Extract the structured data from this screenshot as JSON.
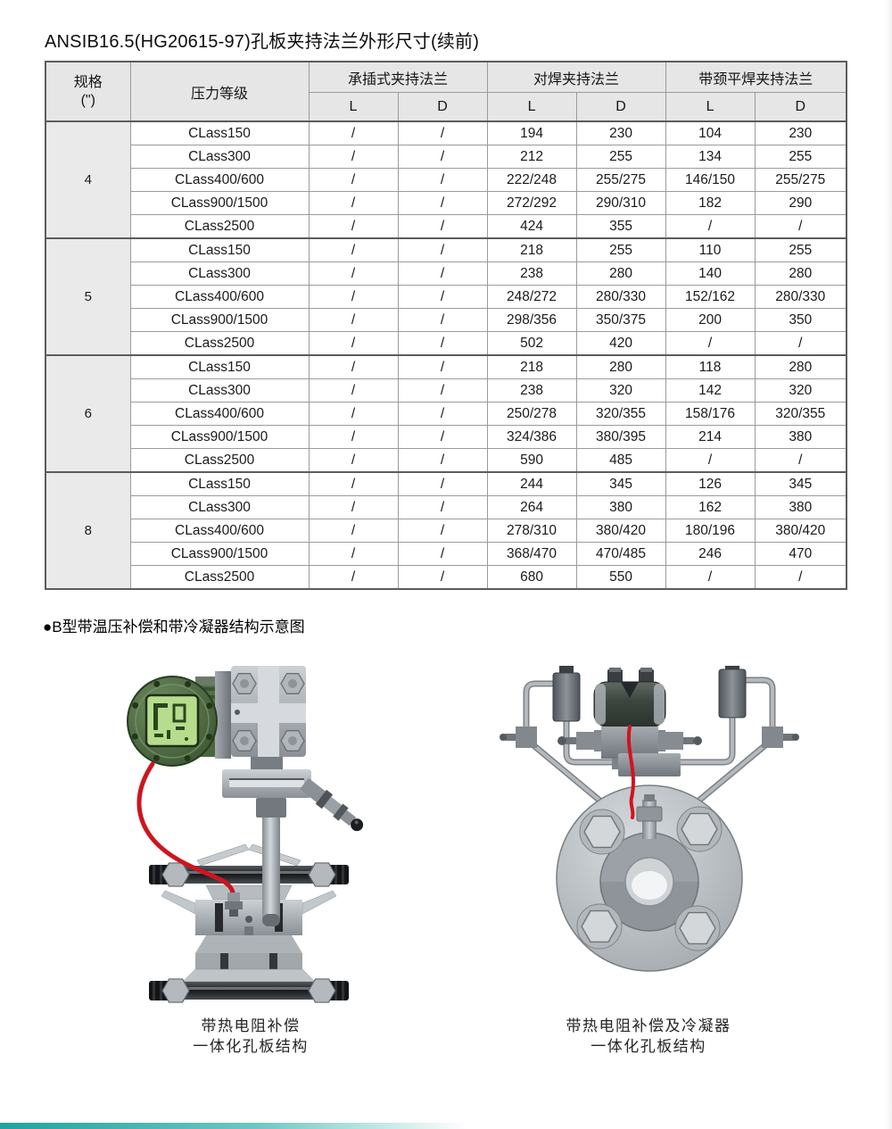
{
  "title": "ANSIB16.5(HG20615-97)孔板夹持法兰外形尺寸(续前)",
  "table": {
    "headers": {
      "spec_line1": "规格",
      "spec_line2": "(\")",
      "pressure_class": "压力等级",
      "socket_weld": "承插式夹持法兰",
      "butt_weld": "对焊夹持法兰",
      "neck_flat_weld": "带颈平焊夹持法兰",
      "dim_l": "L",
      "dim_d": "D"
    },
    "groups": [
      {
        "size": "4",
        "rows": [
          {
            "pressure_class": "CLass150",
            "values": [
              "/",
              "/",
              "194",
              "230",
              "104",
              "230"
            ]
          },
          {
            "pressure_class": "CLass300",
            "values": [
              "/",
              "/",
              "212",
              "255",
              "134",
              "255"
            ]
          },
          {
            "pressure_class": "CLass400/600",
            "values": [
              "/",
              "/",
              "222/248",
              "255/275",
              "146/150",
              "255/275"
            ]
          },
          {
            "pressure_class": "CLass900/1500",
            "values": [
              "/",
              "/",
              "272/292",
              "290/310",
              "182",
              "290"
            ]
          },
          {
            "pressure_class": "CLass2500",
            "values": [
              "/",
              "/",
              "424",
              "355",
              "/",
              "/"
            ]
          }
        ]
      },
      {
        "size": "5",
        "rows": [
          {
            "pressure_class": "CLass150",
            "values": [
              "/",
              "/",
              "218",
              "255",
              "110",
              "255"
            ]
          },
          {
            "pressure_class": "CLass300",
            "values": [
              "/",
              "/",
              "238",
              "280",
              "140",
              "280"
            ]
          },
          {
            "pressure_class": "CLass400/600",
            "values": [
              "/",
              "/",
              "248/272",
              "280/330",
              "152/162",
              "280/330"
            ]
          },
          {
            "pressure_class": "CLass900/1500",
            "values": [
              "/",
              "/",
              "298/356",
              "350/375",
              "200",
              "350"
            ]
          },
          {
            "pressure_class": "CLass2500",
            "values": [
              "/",
              "/",
              "502",
              "420",
              "/",
              "/"
            ]
          }
        ]
      },
      {
        "size": "6",
        "rows": [
          {
            "pressure_class": "CLass150",
            "values": [
              "/",
              "/",
              "218",
              "280",
              "118",
              "280"
            ]
          },
          {
            "pressure_class": "CLass300",
            "values": [
              "/",
              "/",
              "238",
              "320",
              "142",
              "320"
            ]
          },
          {
            "pressure_class": "CLass400/600",
            "values": [
              "/",
              "/",
              "250/278",
              "320/355",
              "158/176",
              "320/355"
            ]
          },
          {
            "pressure_class": "CLass900/1500",
            "values": [
              "/",
              "/",
              "324/386",
              "380/395",
              "214",
              "380"
            ]
          },
          {
            "pressure_class": "CLass2500",
            "values": [
              "/",
              "/",
              "590",
              "485",
              "/",
              "/"
            ]
          }
        ]
      },
      {
        "size": "8",
        "rows": [
          {
            "pressure_class": "CLass150",
            "values": [
              "/",
              "/",
              "244",
              "345",
              "126",
              "345"
            ]
          },
          {
            "pressure_class": "CLass300",
            "values": [
              "/",
              "/",
              "264",
              "380",
              "162",
              "380"
            ]
          },
          {
            "pressure_class": "CLass400/600",
            "values": [
              "/",
              "/",
              "278/310",
              "380/420",
              "180/196",
              "380/420"
            ]
          },
          {
            "pressure_class": "CLass900/1500",
            "values": [
              "/",
              "/",
              "368/470",
              "470/485",
              "246",
              "470"
            ]
          },
          {
            "pressure_class": "CLass2500",
            "values": [
              "/",
              "/",
              "680",
              "550",
              "/",
              "/"
            ]
          }
        ]
      }
    ]
  },
  "section_heading": "●B型带温压补偿和带冷凝器结构示意图",
  "figures": {
    "fig1": {
      "caption_line1": "带热电阻补偿",
      "caption_line2": "一体化孔板结构"
    },
    "fig2": {
      "caption_line1": "带热电阻补偿及冷凝器",
      "caption_line2": "一体化孔板结构"
    }
  },
  "colors": {
    "cable_red": "#ce1520",
    "housing_green": "#4a6540",
    "lcd_green": "#b5dd8b",
    "metal_light": "#d0d4d7",
    "metal_dark": "#5a5f64",
    "table_header_bg": "#e6e6e6",
    "table_border": "#9b9b9b",
    "table_group_border": "#5c5c5c",
    "bottom_bar_teal": "#1fa39d"
  }
}
